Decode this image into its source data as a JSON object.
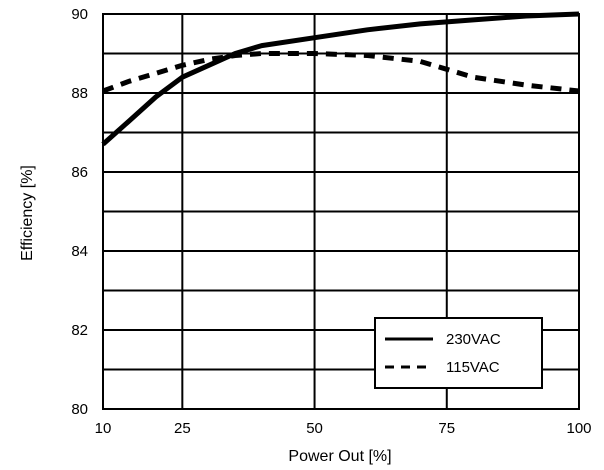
{
  "chart_data": {
    "type": "line",
    "title": "",
    "xlabel": "Power Out [%]",
    "ylabel": "Efficiency [%]",
    "xlim": [
      10,
      100
    ],
    "ylim": [
      80,
      90
    ],
    "x_ticks": [
      10,
      25,
      50,
      75,
      100
    ],
    "y_ticks": [
      80,
      82,
      84,
      86,
      88,
      90
    ],
    "grid": true,
    "legend_position": "bottom-right",
    "series": [
      {
        "name": "230VAC",
        "style": "solid",
        "color": "#000000",
        "x": [
          10,
          15,
          20,
          25,
          30,
          35,
          40,
          50,
          60,
          70,
          80,
          90,
          100
        ],
        "y": [
          86.7,
          87.3,
          87.9,
          88.4,
          88.7,
          89.0,
          89.2,
          89.4,
          89.6,
          89.75,
          89.85,
          89.95,
          90.0
        ]
      },
      {
        "name": "115VAC",
        "style": "dashed",
        "color": "#000000",
        "x": [
          10,
          15,
          20,
          25,
          30,
          35,
          40,
          50,
          60,
          70,
          75,
          80,
          90,
          100
        ],
        "y": [
          88.05,
          88.3,
          88.5,
          88.7,
          88.85,
          88.95,
          89.0,
          89.0,
          88.95,
          88.8,
          88.6,
          88.4,
          88.2,
          88.05
        ]
      }
    ]
  }
}
